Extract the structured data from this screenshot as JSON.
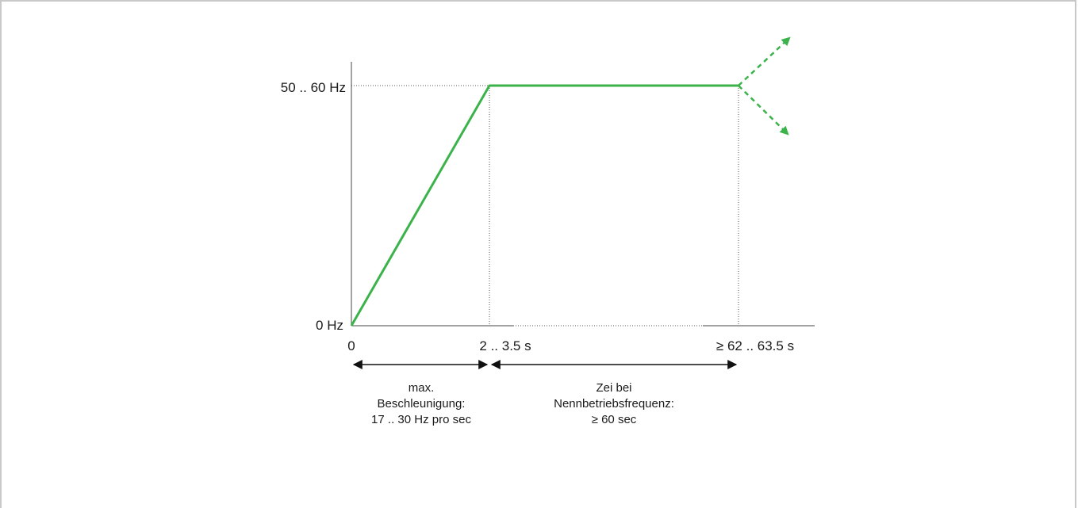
{
  "diagram": {
    "y_labels": {
      "top": "50 .. 60 Hz",
      "bottom": "0 Hz"
    },
    "x_labels": {
      "origin": "0",
      "ramp_end": "2 .. 3.5 s",
      "hold_end": "≥ 62 .. 63.5 s"
    },
    "captions": {
      "acceleration": [
        "max.",
        "Beschleunigung:",
        "17 .. 30 Hz pro sec"
      ],
      "rated_time": [
        "Zei bei",
        "Nennbetriebsfrequenz:",
        "≥ 60 sec"
      ]
    },
    "colors": {
      "profile": "#3cb34a",
      "axis": "#444444",
      "guide": "#555555",
      "arrow": "#111111"
    }
  }
}
